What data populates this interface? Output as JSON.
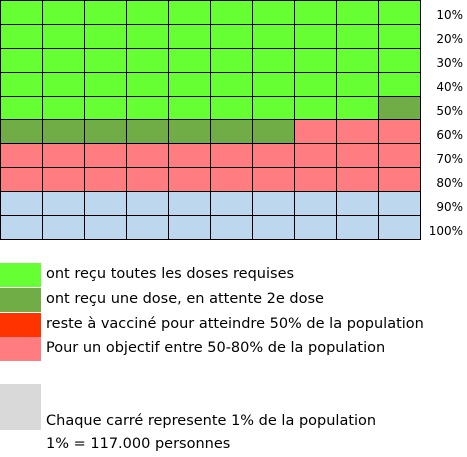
{
  "colors": {
    "fully_vaccinated": "#66FF33",
    "one_dose": "#70AD47",
    "to_vaccinate_50": "#FF3300",
    "objective_50_80": "#FF7C80",
    "remaining": "#BDD7EE",
    "square_key": "#D9D9D9"
  },
  "grid": {
    "columns": 10,
    "rows": [
      [
        "fully_vaccinated",
        "fully_vaccinated",
        "fully_vaccinated",
        "fully_vaccinated",
        "fully_vaccinated",
        "fully_vaccinated",
        "fully_vaccinated",
        "fully_vaccinated",
        "fully_vaccinated",
        "fully_vaccinated"
      ],
      [
        "fully_vaccinated",
        "fully_vaccinated",
        "fully_vaccinated",
        "fully_vaccinated",
        "fully_vaccinated",
        "fully_vaccinated",
        "fully_vaccinated",
        "fully_vaccinated",
        "fully_vaccinated",
        "fully_vaccinated"
      ],
      [
        "fully_vaccinated",
        "fully_vaccinated",
        "fully_vaccinated",
        "fully_vaccinated",
        "fully_vaccinated",
        "fully_vaccinated",
        "fully_vaccinated",
        "fully_vaccinated",
        "fully_vaccinated",
        "fully_vaccinated"
      ],
      [
        "fully_vaccinated",
        "fully_vaccinated",
        "fully_vaccinated",
        "fully_vaccinated",
        "fully_vaccinated",
        "fully_vaccinated",
        "fully_vaccinated",
        "fully_vaccinated",
        "fully_vaccinated",
        "fully_vaccinated"
      ],
      [
        "fully_vaccinated",
        "fully_vaccinated",
        "fully_vaccinated",
        "fully_vaccinated",
        "fully_vaccinated",
        "fully_vaccinated",
        "fully_vaccinated",
        "fully_vaccinated",
        "fully_vaccinated",
        "one_dose"
      ],
      [
        "one_dose",
        "one_dose",
        "one_dose",
        "one_dose",
        "one_dose",
        "one_dose",
        "one_dose",
        "objective_50_80",
        "objective_50_80",
        "objective_50_80"
      ],
      [
        "objective_50_80",
        "objective_50_80",
        "objective_50_80",
        "objective_50_80",
        "objective_50_80",
        "objective_50_80",
        "objective_50_80",
        "objective_50_80",
        "objective_50_80",
        "objective_50_80"
      ],
      [
        "objective_50_80",
        "objective_50_80",
        "objective_50_80",
        "objective_50_80",
        "objective_50_80",
        "objective_50_80",
        "objective_50_80",
        "objective_50_80",
        "objective_50_80",
        "objective_50_80"
      ],
      [
        "remaining",
        "remaining",
        "remaining",
        "remaining",
        "remaining",
        "remaining",
        "remaining",
        "remaining",
        "remaining",
        "remaining"
      ],
      [
        "remaining",
        "remaining",
        "remaining",
        "remaining",
        "remaining",
        "remaining",
        "remaining",
        "remaining",
        "remaining",
        "remaining"
      ]
    ]
  },
  "percent_labels": [
    "10%",
    "20%",
    "30%",
    "40%",
    "50%",
    "60%",
    "70%",
    "80%",
    "90%",
    "100%"
  ],
  "legend": [
    {
      "color_key": "fully_vaccinated",
      "label": "ont reçu toutes les doses requises"
    },
    {
      "color_key": "one_dose",
      "label": "ont reçu une dose, en attente 2e dose"
    },
    {
      "color_key": "to_vaccinate_50",
      "label": "reste à vacciné pour atteindre 50% de la population"
    },
    {
      "color_key": "objective_50_80",
      "label": "Pour un objectif entre 50-80% de la population"
    }
  ],
  "notes": {
    "square_meaning": "Chaque carré represente 1% de la population",
    "one_percent": "1% = 117.000 personnes"
  }
}
